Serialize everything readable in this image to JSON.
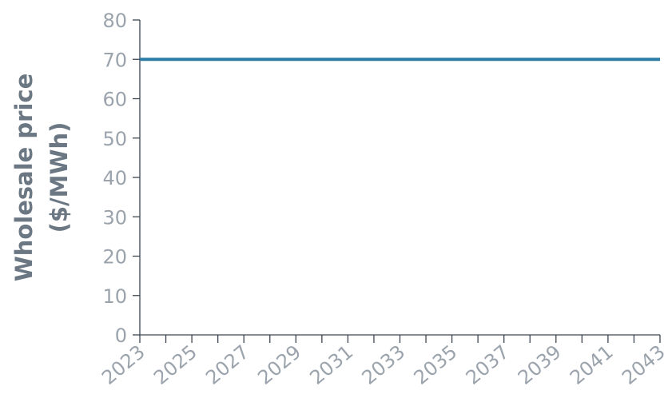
{
  "chart_data": {
    "type": "line",
    "title": "",
    "ylabel_line1": "Wholesale price",
    "ylabel_line2": "($/MWh)",
    "xlabel": "",
    "ylim": [
      0,
      80
    ],
    "yticks": [
      0,
      10,
      20,
      30,
      40,
      50,
      60,
      70,
      80
    ],
    "xlim": [
      2023,
      2043
    ],
    "xticks": [
      2023,
      2025,
      2027,
      2029,
      2031,
      2033,
      2035,
      2037,
      2039,
      2041,
      2043
    ],
    "x": [
      2023,
      2043
    ],
    "series": [
      {
        "values": [
          70,
          70
        ],
        "color": "#2e7da6"
      }
    ],
    "grid": false,
    "legend": "none"
  }
}
